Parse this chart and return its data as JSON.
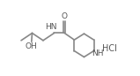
{
  "line_color": "#888888",
  "text_color": "#555555",
  "lw": 1.2,
  "fontsize": 6.5,
  "fig_width": 1.59,
  "fig_height": 0.86,
  "dpi": 100,
  "xlim": [
    0,
    10
  ],
  "ylim": [
    0,
    6
  ]
}
